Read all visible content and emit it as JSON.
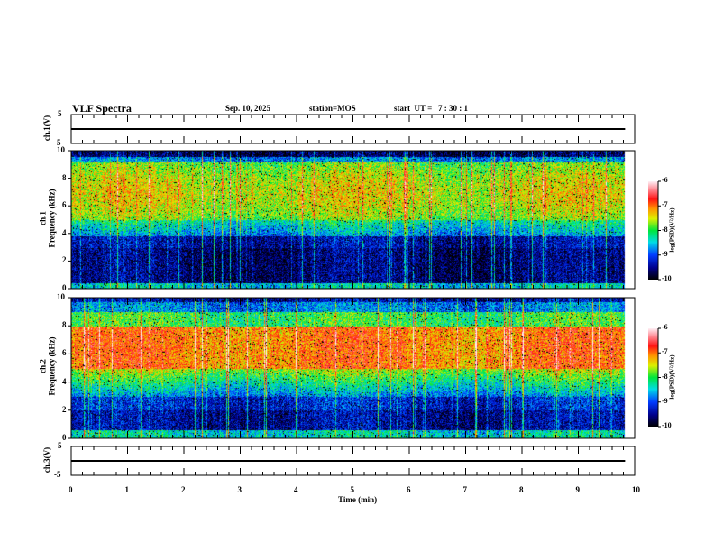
{
  "header": {
    "title": "VLF Spectra",
    "date": "Sep. 10, 2025",
    "station": "station=MOS",
    "start": "start  UT =   7 : 30 : 1"
  },
  "chart_data": [
    {
      "type": "line",
      "ylabel": "ch.1(V)",
      "ylim": [
        -5,
        5
      ],
      "yticks": [
        "5",
        "-5"
      ],
      "xlim": [
        0,
        10
      ],
      "value": 0
    },
    {
      "type": "heatmap",
      "ylabel": "ch.1\nFrequency (kHz)",
      "ylim": [
        0,
        10
      ],
      "yticks": [
        "0",
        "2",
        "4",
        "6",
        "8",
        "10"
      ],
      "xlim": [
        0,
        10
      ],
      "data_end_min": 9.83,
      "colorbar": {
        "label": "log(PSD)(V²/Hz)",
        "range": [
          -10,
          -6
        ],
        "ticks": [
          "-6",
          "-7",
          "-8",
          "-9",
          "-10"
        ]
      }
    },
    {
      "type": "heatmap",
      "ylabel": "ch.2\nFrequency (kHz)",
      "ylim": [
        0,
        10
      ],
      "yticks": [
        "0",
        "2",
        "4",
        "6",
        "8",
        "10"
      ],
      "xlim": [
        0,
        10
      ],
      "data_end_min": 9.83,
      "colorbar": {
        "label": "log(PSD)(V²/Hz)",
        "range": [
          -10,
          -6
        ],
        "ticks": [
          "-6",
          "-7",
          "-8",
          "-9",
          "-10"
        ]
      }
    },
    {
      "type": "line",
      "ylabel": "ch.3(V)",
      "ylim": [
        -5,
        5
      ],
      "yticks": [
        "5",
        "-5"
      ],
      "xlim": [
        0,
        10
      ],
      "value": 0,
      "xlabel": "Time  (min)",
      "xticks": [
        "0",
        "1",
        "2",
        "3",
        "4",
        "5",
        "6",
        "7",
        "8",
        "9",
        "10"
      ]
    }
  ]
}
